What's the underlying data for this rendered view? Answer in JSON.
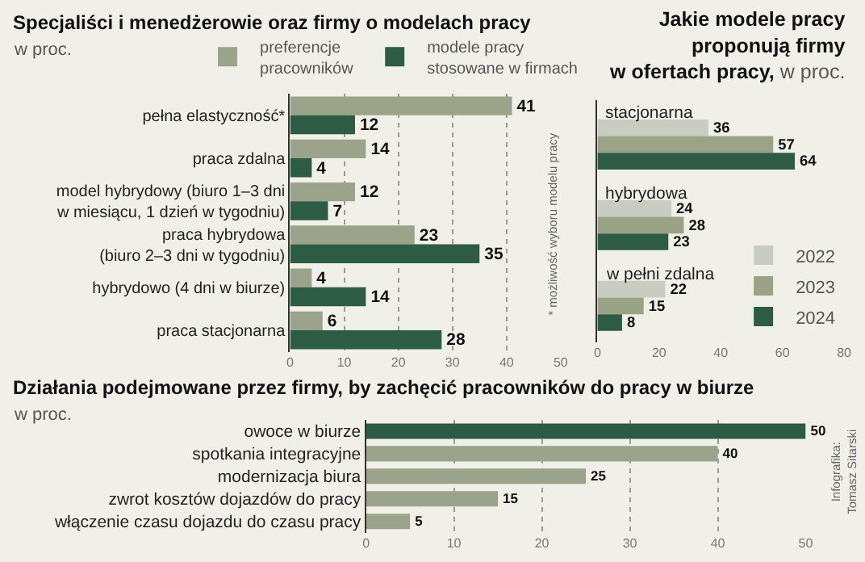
{
  "chart_data": [
    {
      "type": "bar",
      "orientation": "horizontal",
      "title": "Specjaliści i menedżerowie oraz firmy o modelach pracy",
      "subtitle": "w proc.",
      "categories": [
        "pełna elastyczność*",
        "praca zdalna",
        "model hybrydowy (biuro 1–3 dni\nw miesiącu, 1 dzień w tygodniu)",
        "praca hybrydowa\n(biuro 2–3 dni w tygodniu)",
        "hybrydowo (4 dni w biurze)",
        "praca stacjonarna"
      ],
      "series": [
        {
          "name": "preferencje\npracowników",
          "color": "#9ba38a",
          "values": [
            41,
            14,
            12,
            23,
            4,
            6
          ]
        },
        {
          "name": "modele pracy\nstosowane w firmach",
          "color": "#2d5b43",
          "values": [
            12,
            4,
            7,
            35,
            14,
            28
          ]
        }
      ],
      "xlim": [
        0,
        50
      ],
      "xticks": [
        0,
        10,
        20,
        30,
        40,
        50
      ],
      "grid": "x",
      "legend": "top",
      "data_labels": true,
      "annotations": [
        "* możliwość wyboru modelu pracy"
      ]
    },
    {
      "type": "bar",
      "orientation": "horizontal",
      "title": "Jakie modele pracy\nproponują firmy\nw ofertach pracy,",
      "subtitle": "w proc.",
      "categories": [
        "stacjonarna",
        "hybrydowa",
        "w pełni zdalna"
      ],
      "series": [
        {
          "name": "2022",
          "color": "#c9cdc1",
          "values": [
            36,
            24,
            22
          ]
        },
        {
          "name": "2023",
          "color": "#9aa386",
          "values": [
            57,
            28,
            15
          ]
        },
        {
          "name": "2024",
          "color": "#2d5b43",
          "values": [
            64,
            23,
            8
          ]
        }
      ],
      "xlim": [
        0,
        80
      ],
      "xticks": [
        0,
        20,
        40,
        60,
        80
      ],
      "legend": "bottom right",
      "data_labels": true
    },
    {
      "type": "bar",
      "orientation": "horizontal",
      "title": "Działania podejmowane przez firmy, by zachęcić pracowników do pracy w biurze",
      "subtitle": "w proc.",
      "categories": [
        "owoce w biurze",
        "spotkania integracyjne",
        "modernizacja biura",
        "zwrot kosztów dojazdów do pracy",
        "włączenie czasu dojazdu do czasu pracy"
      ],
      "values": [
        50,
        40,
        25,
        15,
        5
      ],
      "colors": [
        "#2d5b43",
        "#9ba38a",
        "#9ba38a",
        "#9ba38a",
        "#9ba38a"
      ],
      "xlim": [
        0,
        50
      ],
      "xticks": [
        0,
        10,
        20,
        30,
        40,
        50
      ],
      "grid": "x",
      "data_labels": true,
      "annotations": [
        "Infografika:\nTomasz Sitarski"
      ]
    }
  ]
}
